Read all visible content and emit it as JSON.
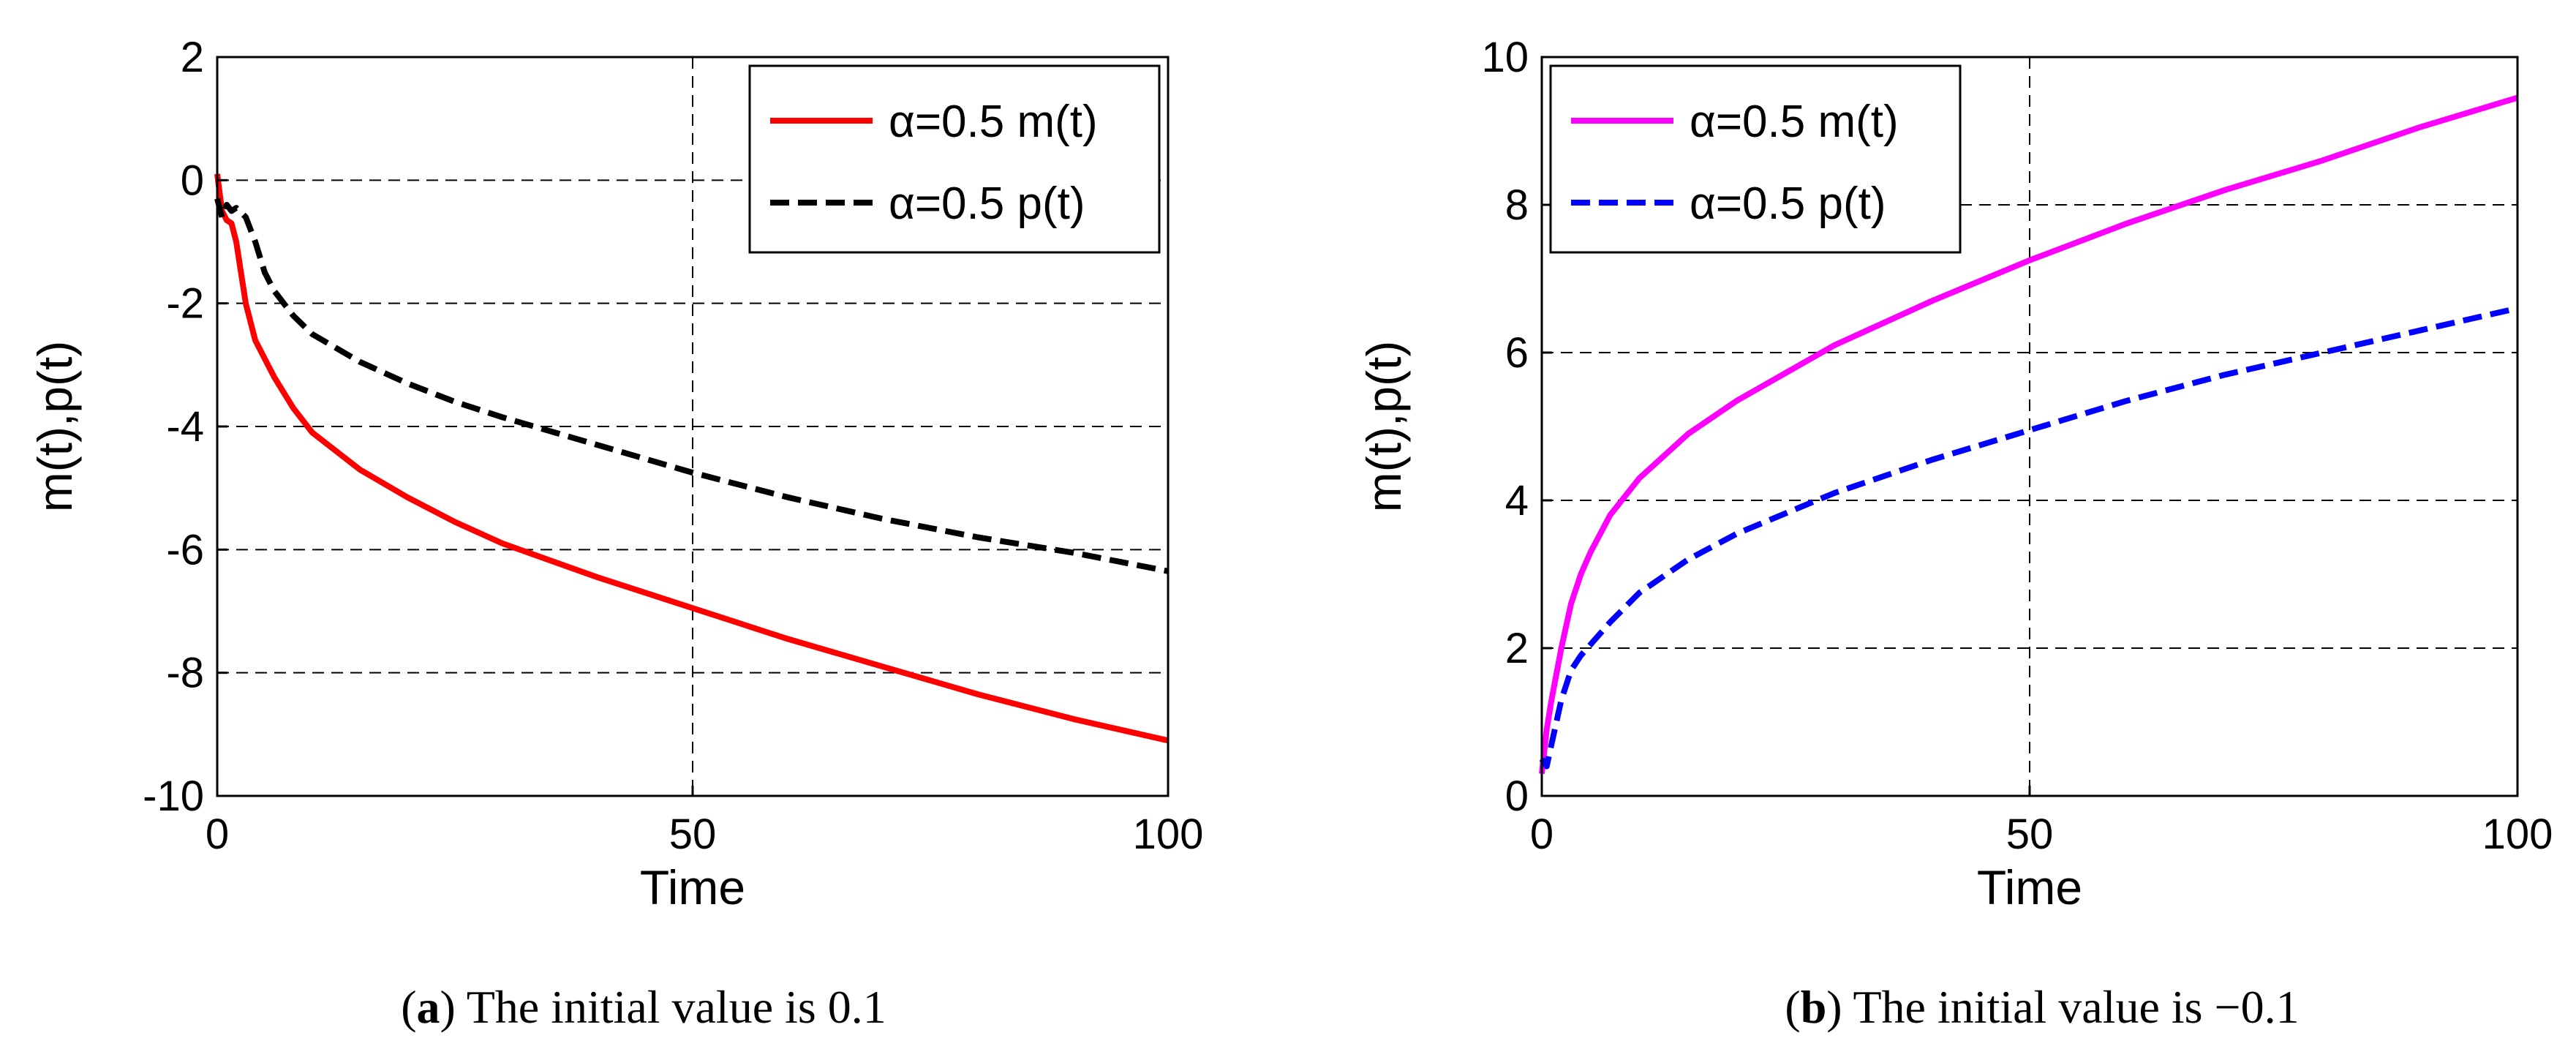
{
  "chart_data": [
    {
      "type": "line",
      "caption_letter": "a",
      "caption_open": "(",
      "caption_rest": ") The initial value is  0.1",
      "xlabel": "Time",
      "ylabel": "m(t),p(t)",
      "xlim": [
        0,
        100
      ],
      "ylim": [
        -10,
        2
      ],
      "xticks": [
        0,
        50,
        100
      ],
      "xtick_labels": [
        "0",
        "50",
        "100"
      ],
      "yticks": [
        -10,
        -8,
        -6,
        -4,
        -2,
        0,
        2
      ],
      "ytick_labels": [
        "-10",
        "-8",
        "-6",
        "-4",
        "-2",
        "0",
        "2"
      ],
      "grid": true,
      "legend_position": "top-right",
      "series": [
        {
          "name": "α=0.5 m(t)",
          "color": "#ff0000",
          "dash": "solid",
          "x": [
            0,
            0.5,
            1,
            1.5,
            2,
            2.5,
            3,
            4,
            5,
            6,
            8,
            10,
            15,
            20,
            25,
            30,
            40,
            50,
            60,
            70,
            80,
            90,
            100
          ],
          "y": [
            0.1,
            -0.5,
            -0.65,
            -0.7,
            -1.0,
            -1.5,
            -2.0,
            -2.6,
            -2.9,
            -3.2,
            -3.7,
            -4.1,
            -4.7,
            -5.15,
            -5.55,
            -5.9,
            -6.45,
            -6.95,
            -7.45,
            -7.9,
            -8.35,
            -8.75,
            -9.1
          ]
        },
        {
          "name": "α=0.5 p(t)",
          "color": "#000000",
          "dash": "dashed",
          "x": [
            0,
            0.5,
            1,
            1.5,
            2,
            3,
            4,
            5,
            6,
            8,
            10,
            15,
            20,
            25,
            30,
            40,
            50,
            60,
            70,
            80,
            90,
            100
          ],
          "y": [
            -0.3,
            -0.6,
            -0.4,
            -0.5,
            -0.45,
            -0.6,
            -1.0,
            -1.5,
            -1.8,
            -2.2,
            -2.5,
            -2.95,
            -3.3,
            -3.6,
            -3.85,
            -4.3,
            -4.75,
            -5.15,
            -5.5,
            -5.8,
            -6.05,
            -6.35
          ]
        }
      ]
    },
    {
      "type": "line",
      "caption_letter": "b",
      "caption_open": "(",
      "caption_rest": ") The initial value is  −0.1",
      "xlabel": "Time",
      "ylabel": "m(t),p(t)",
      "xlim": [
        0,
        100
      ],
      "ylim": [
        0,
        10
      ],
      "xticks": [
        0,
        50,
        100
      ],
      "xtick_labels": [
        "0",
        "50",
        "100"
      ],
      "yticks": [
        0,
        2,
        4,
        6,
        8,
        10
      ],
      "ytick_labels": [
        "0",
        "2",
        "4",
        "6",
        "8",
        "10"
      ],
      "grid": true,
      "legend_position": "top-left",
      "series": [
        {
          "name": "α=0.5 m(t)",
          "color": "#ff00ff",
          "dash": "solid",
          "x": [
            0,
            0.5,
            1,
            2,
            3,
            4,
            5,
            7,
            10,
            15,
            20,
            30,
            40,
            50,
            60,
            70,
            80,
            90,
            100
          ],
          "y": [
            0.3,
            0.9,
            1.3,
            2.0,
            2.6,
            3.0,
            3.3,
            3.8,
            4.3,
            4.9,
            5.35,
            6.1,
            6.7,
            7.25,
            7.75,
            8.2,
            8.6,
            9.05,
            9.45
          ]
        },
        {
          "name": "α=0.5 p(t)",
          "color": "#0000ff",
          "dash": "dashed",
          "x": [
            0,
            0.5,
            1,
            2,
            3,
            4,
            5,
            7,
            10,
            15,
            20,
            30,
            40,
            50,
            60,
            70,
            80,
            90,
            100
          ],
          "y": [
            0.5,
            0.4,
            0.7,
            1.3,
            1.7,
            1.9,
            2.05,
            2.35,
            2.75,
            3.2,
            3.55,
            4.1,
            4.55,
            4.95,
            5.35,
            5.7,
            6.0,
            6.3,
            6.6
          ]
        }
      ]
    }
  ]
}
